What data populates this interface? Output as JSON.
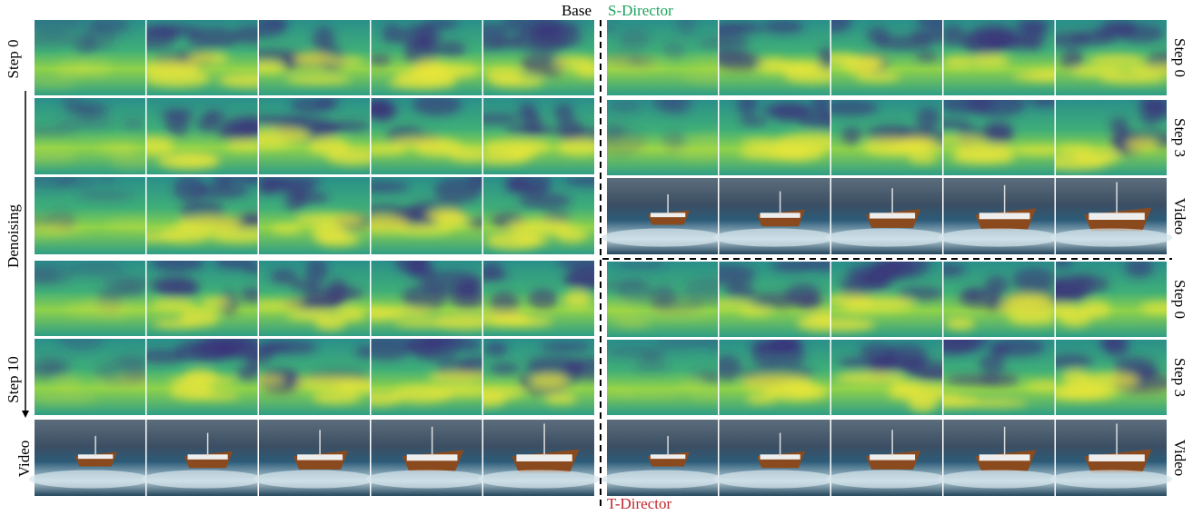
{
  "header": {
    "left_title": "Base",
    "right_top_title": "S-Director",
    "right_bottom_title": "T-Director"
  },
  "left_panel": {
    "labels": [
      "Step 0",
      "Denoising",
      "Step 10",
      "Video"
    ]
  },
  "right_panel": {
    "row_labels": [
      "Step 0",
      "Step 3",
      "Video",
      "Step 0",
      "Step 3",
      "Video"
    ]
  }
}
